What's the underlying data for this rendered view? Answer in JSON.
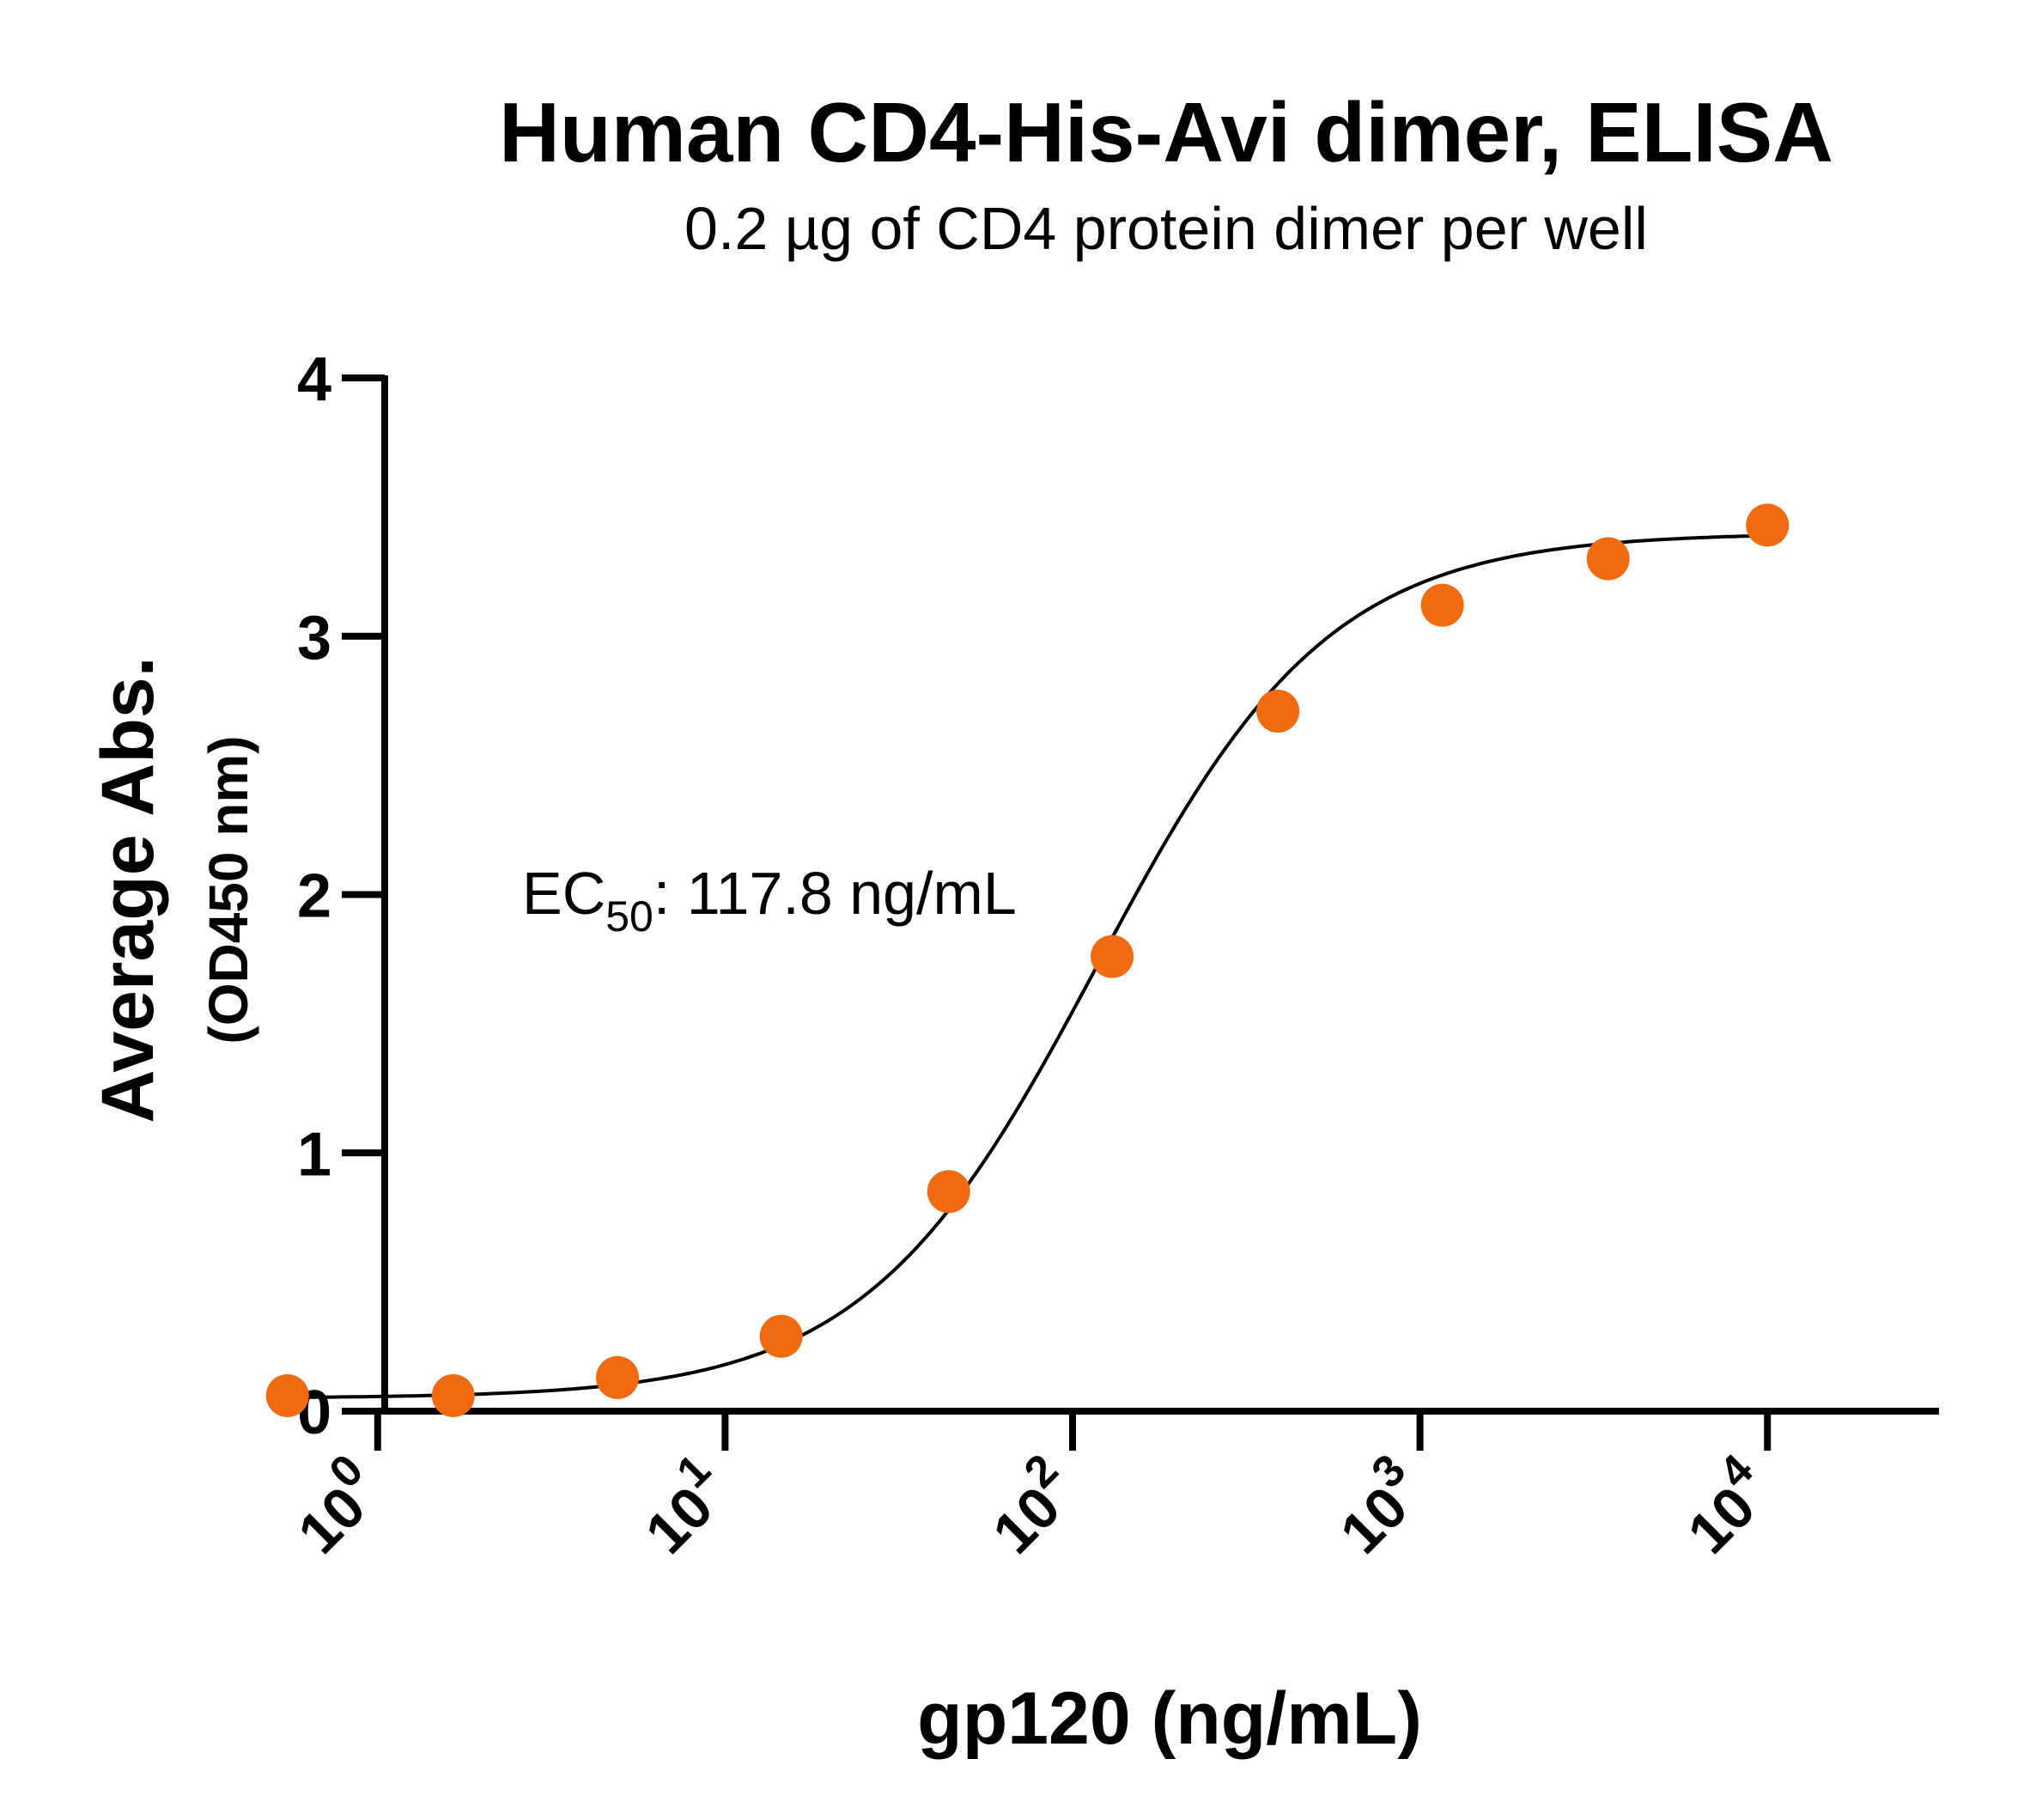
{
  "chart_data": {
    "type": "scatter",
    "title": "Human CD4-His-Avi dimer, ELISA",
    "subtitle": "0.2 µg of CD4 protein dimer per well",
    "xlabel": "gp120 (ng/mL)",
    "ylabel": "Average Abs.",
    "ylabel_sub": "(OD450 nm)",
    "x_scale": "log",
    "xlim": [
      0.5,
      10000
    ],
    "ylim": [
      0,
      4
    ],
    "x_ticks": [
      1,
      10,
      100,
      1000,
      10000
    ],
    "x_tick_labels": [
      {
        "base": "10",
        "exp": "0"
      },
      {
        "base": "10",
        "exp": "1"
      },
      {
        "base": "10",
        "exp": "2"
      },
      {
        "base": "10",
        "exp": "3"
      },
      {
        "base": "10",
        "exp": "4"
      }
    ],
    "y_ticks": [
      0,
      1,
      2,
      3,
      4
    ],
    "y_tick_labels": [
      "0",
      "1",
      "2",
      "3",
      "4"
    ],
    "grid": false,
    "legend": "none",
    "marker_color": "#f26a10",
    "curve_color": "#000000",
    "x": [
      0.55,
      1.65,
      4.9,
      14.5,
      44,
      130,
      390,
      1160,
      3480,
      10000
    ],
    "y": [
      0.06,
      0.06,
      0.13,
      0.29,
      0.85,
      1.76,
      2.71,
      3.12,
      3.3,
      3.43
    ],
    "fit": {
      "model": "4PL",
      "bottom": 0.05,
      "top": 3.4,
      "ec50": 117.8,
      "hill": 1.3
    },
    "annotation": {
      "prefix": "EC",
      "subscript": "50",
      "suffix": ": 117.8 ng/mL"
    }
  }
}
